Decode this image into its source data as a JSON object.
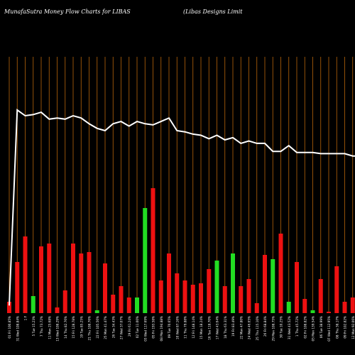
{
  "header": {
    "left_title": "MunafaSutra  Money Flow  Charts for LIBAS",
    "right_title": "(Libas Designs Limit"
  },
  "colors": {
    "background": "#000000",
    "grid_line": "#b8650a",
    "bar_up": "#22dd22",
    "bar_down": "#ee1111",
    "price_line": "#ffffff",
    "label": "#ffffff"
  },
  "chart_data": {
    "type": "bar",
    "title": "",
    "xlabel": "",
    "ylabel": "",
    "grid": true,
    "categories": [
      "01 Fri 100.85%",
      "31 Wed 108.84%",
      "1 F",
      "5 Tue 15.23%",
      "7 Thu 73.72%",
      "11 Mon 25.68%",
      "13 Wed 108.29%",
      "14 Thu 82.76%",
      "15 Fri 128.78%",
      "19 Tue 85.25%",
      "21 Thu 108.76%",
      "22 Fri 105.56%",
      "25 Mon 41.47%",
      "26 Tue 34.43%",
      "27 Wed 37.07%",
      "29 Fri 61.24%",
      "02 Tue 11.00%",
      "03 Wed 117.69%",
      "05 Fri 193.58%",
      "08 Mon 194.88%",
      "09 Tue 70.65%",
      "10 Wed 87.16%",
      "11 Thu 79.88%",
      "12 Fri 148.14%",
      "15 Mon 18.24%",
      "16 Tue 118.70%",
      "17 Wed 43.64%",
      "18 Thu 63.31%",
      "19 Fri 83.49%",
      "22 Mon 47.80%",
      "24 Wed 46.65%",
      "25 Thu 115.10%",
      "26 Fri 68.84%",
      "29 Mon 108.75%",
      "30 Tue 10.25%",
      "31 Wed 43.52%",
      "1 Thu 45.72%",
      "02 Fri 108.82%",
      "05 Mon 139.54%",
      "06 Tue 38.99%",
      "07 Wed 112.95%",
      "08 Thu 38.17%",
      "09 Fri 102.82%",
      "12 Mon 92.06%",
      "13 Tue 117.87%"
    ],
    "series": [
      {
        "values": [
          8,
          36,
          54,
          12,
          47,
          49,
          4,
          16,
          49,
          42,
          43,
          2,
          35,
          13,
          19,
          11,
          11,
          74,
          88,
          23,
          42,
          28,
          23,
          20,
          21,
          31,
          37,
          19,
          42,
          19,
          24,
          7,
          41,
          38,
          56,
          8,
          36,
          10,
          2,
          24,
          1,
          33,
          8,
          11,
          14
        ],
        "direction": [
          "down",
          "down",
          "down",
          "up",
          "down",
          "down",
          "down",
          "down",
          "down",
          "down",
          "down",
          "up",
          "down",
          "down",
          "down",
          "down",
          "up",
          "up",
          "down",
          "down",
          "down",
          "down",
          "down",
          "down",
          "down",
          "down",
          "up",
          "down",
          "up",
          "down",
          "down",
          "down",
          "down",
          "up",
          "down",
          "up",
          "down",
          "down",
          "up",
          "down",
          "down",
          "down",
          "down",
          "down",
          "up"
        ]
      },
      {
        "values": [
          6,
          176,
          171,
          172,
          174,
          168,
          169,
          168,
          171,
          169,
          164,
          160,
          158,
          164,
          166,
          162,
          166,
          164,
          163,
          166,
          169,
          158,
          157,
          155,
          154,
          151,
          154,
          150,
          152,
          147,
          149,
          147,
          147,
          140,
          140,
          145,
          139,
          139,
          139,
          138,
          138,
          138,
          138,
          136,
          136
        ]
      }
    ],
    "ylim": [
      0,
      200
    ]
  }
}
